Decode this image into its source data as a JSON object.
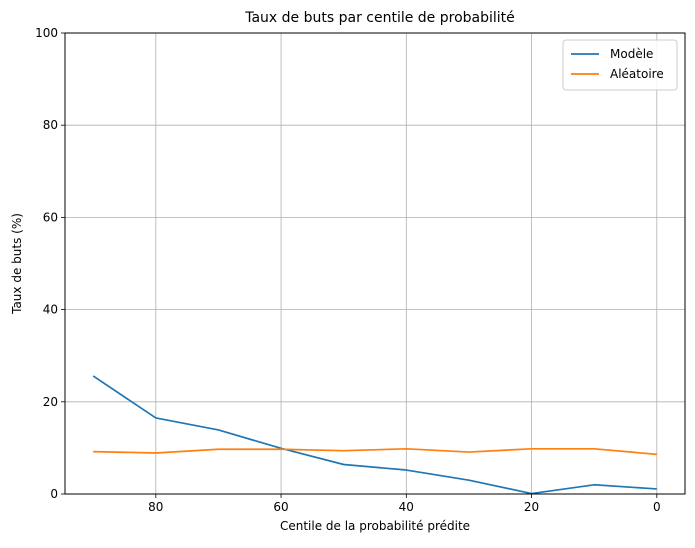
{
  "chart_data": {
    "type": "line",
    "title": "Taux de buts par centile de probabilité",
    "xlabel": "Centile de la probabilité prédite",
    "ylabel": "Taux de buts (%)",
    "x_inverted": true,
    "xlim": [
      94.5,
      -4.5
    ],
    "ylim": [
      0,
      100
    ],
    "x_ticks": [
      80,
      60,
      40,
      20,
      0
    ],
    "y_ticks": [
      0,
      20,
      40,
      60,
      80,
      100
    ],
    "grid": true,
    "legend_position": "top-right",
    "x": [
      90,
      80,
      70,
      60,
      50,
      40,
      30,
      20,
      10,
      0
    ],
    "series": [
      {
        "name": "Modèle",
        "color": "#1f77b4",
        "values": [
          25.6,
          16.5,
          13.9,
          9.9,
          6.4,
          5.2,
          3.0,
          0.1,
          2.0,
          1.1
        ]
      },
      {
        "name": "Aléatoire",
        "color": "#ff7f0e",
        "values": [
          9.2,
          8.9,
          9.7,
          9.7,
          9.4,
          9.8,
          9.1,
          9.8,
          9.8,
          8.6
        ]
      }
    ]
  }
}
